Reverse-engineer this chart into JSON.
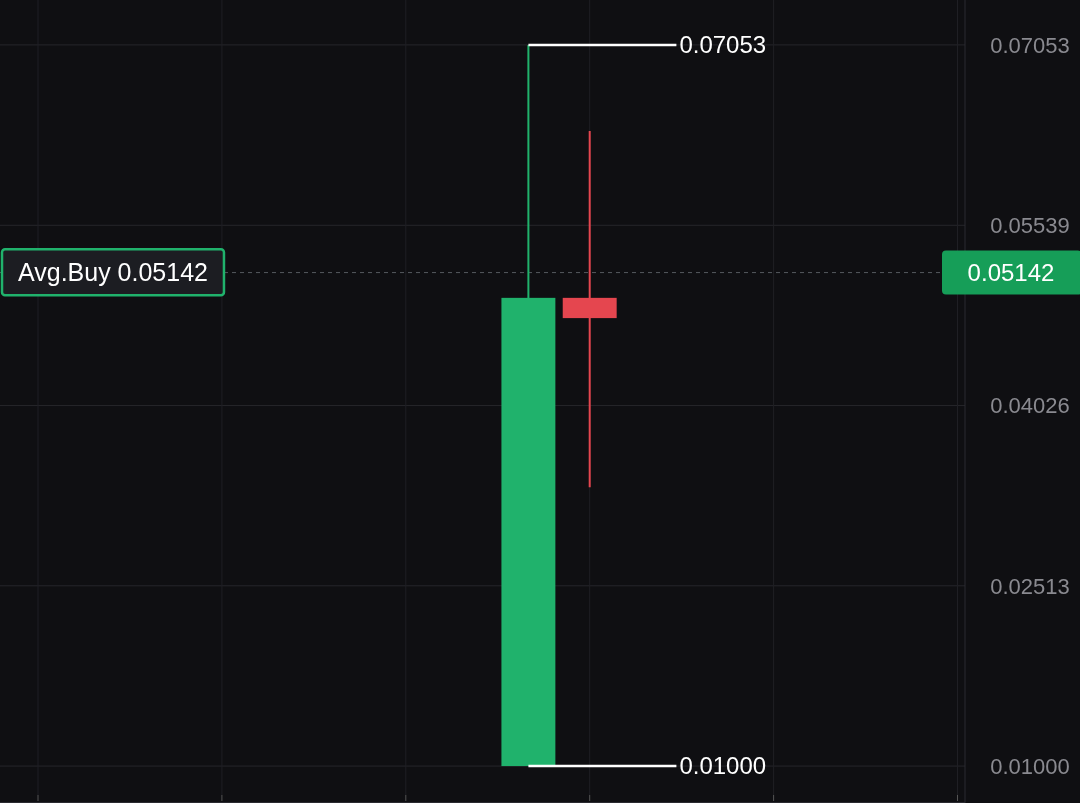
{
  "chart_data": {
    "type": "candlestick",
    "categories": [
      null,
      null,
      null,
      null,
      null,
      null,
      null,
      null,
      null,
      null,
      null,
      null,
      null,
      null,
      null,
      null
    ],
    "ohlc": [
      null,
      null,
      null,
      null,
      null,
      null,
      null,
      null,
      [
        0.01,
        0.07053,
        0.01,
        0.0493
      ],
      [
        0.0493,
        0.0633,
        0.0334,
        0.0476
      ],
      null,
      null,
      null,
      null,
      null,
      null
    ],
    "colors": [
      null,
      null,
      null,
      null,
      null,
      null,
      null,
      null,
      "#20b26c",
      "#e5464f",
      null,
      null,
      null,
      null,
      null,
      null
    ],
    "ylim": [
      0.0069,
      0.0743
    ],
    "yticks": [
      {
        "value": 0.01,
        "label": "0.01000"
      },
      0.02513,
      0.04026,
      0.05539,
      0.07053
    ],
    "tick_labels": "y",
    "grid": true,
    "ref_lines": [
      {
        "axis": "y",
        "value": 0.05142,
        "label": "Avg.Buy 0.05142",
        "color": "#55595f",
        "line_style": "dashed"
      }
    ],
    "annotations": [
      "0.07053",
      "0.01000",
      "0.05142"
    ]
  }
}
